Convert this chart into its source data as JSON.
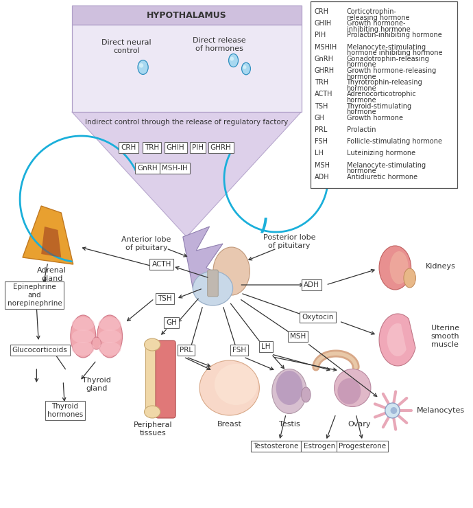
{
  "background_color": "#ffffff",
  "legend_items": [
    [
      "CRH",
      "Corticotrophin-",
      "releasing hormone"
    ],
    [
      "GHIH",
      "Growth hormone-",
      "inhibiting hormone"
    ],
    [
      "PIH",
      "Prolactin-inhibiting hormone",
      ""
    ],
    [
      "MSHIH",
      "Melanocyte-stimulating",
      "hormone inhibiting hormone"
    ],
    [
      "GnRH",
      "Gonadotrophin-releasing",
      "hormone"
    ],
    [
      "GHRH",
      "Growth hormone-releasing",
      "hormone"
    ],
    [
      "TRH",
      "Thyrotrophin-releasing",
      "hormone"
    ],
    [
      "ACTH",
      "Adrenocorticotrophic",
      "hormone"
    ],
    [
      "TSH",
      "Thyroid-stimulating",
      "hormone"
    ],
    [
      "GH",
      "Growth hormone",
      ""
    ],
    [
      "PRL",
      "Prolactin",
      ""
    ],
    [
      "FSH",
      "Follicle-stimulating hormone",
      ""
    ],
    [
      "LH",
      "Luteinizing hormone",
      ""
    ],
    [
      "MSH",
      "Melanocyte-stimulating",
      "hormone"
    ],
    [
      "ADH",
      "Antidiuretic hormone",
      ""
    ]
  ],
  "hyp_color": "#e8e0f0",
  "hyp_top_color": "#d8cce8",
  "funnel_color": "#ddd0ea",
  "arrow_color": "#333333",
  "text_color": "#444444",
  "box_bg": "#ffffff",
  "box_border": "#666666",
  "blue_line_color": "#1aafda"
}
